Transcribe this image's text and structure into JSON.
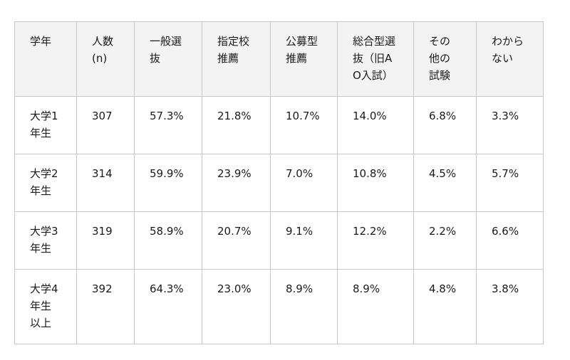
{
  "table": {
    "header": [
      "学年",
      "人数(n)",
      "一般選抜",
      "指定校推薦",
      "公募型推薦",
      "総合型選抜（旧AO入試）",
      "その他の試験",
      "わからない"
    ],
    "rows": [
      [
        "大学1年生",
        "307",
        "57.3%",
        "21.8%",
        "10.7%",
        "14.0%",
        "6.8%",
        "3.3%"
      ],
      [
        "大学2年生",
        "314",
        "59.9%",
        "23.9%",
        "7.0%",
        "10.8%",
        "4.5%",
        "5.7%"
      ],
      [
        "大学3年生",
        "319",
        "58.9%",
        "20.7%",
        "9.1%",
        "12.2%",
        "2.2%",
        "6.6%"
      ],
      [
        "大学4年生以上",
        "392",
        "64.3%",
        "23.0%",
        "8.9%",
        "8.9%",
        "4.8%",
        "3.8%"
      ]
    ]
  }
}
